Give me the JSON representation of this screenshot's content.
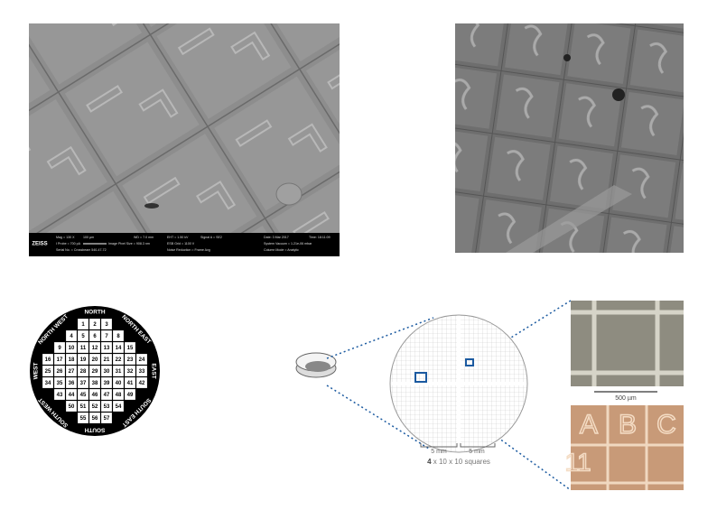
{
  "sem_image": {
    "brand": "ZEISS",
    "info": [
      "Mag = 130 X",
      "100 µm",
      "WD = 7.0 mm",
      "EHT = 1.50 kV",
      "Signal A = SE2",
      "Date: 3 Mar 2017",
      "Time: 18:11:09",
      "I Probe = 700 pA",
      "Image Pixel Size = 908.3 nm",
      "ESB Grid = 1100 V",
      "System Vacuum = 1.21e-06 mbar",
      "Serial No. = Crossbeam 540-47-72",
      "Noise Reduction = Frame Avg",
      "Column Mode = Analytic"
    ]
  },
  "wafer": {
    "directions": [
      "NORTH",
      "NORTH EAST",
      "EAST",
      "SOUTH EAST",
      "SOUTH",
      "SOUTH WEST",
      "WEST",
      "NORTH WEST"
    ],
    "rows": [
      [
        "1",
        "2",
        "3"
      ],
      [
        "4",
        "5",
        "6",
        "7",
        "8"
      ],
      [
        "9",
        "10",
        "11",
        "12",
        "13",
        "14",
        "15"
      ],
      [
        "16",
        "17",
        "18",
        "19",
        "20",
        "21",
        "22",
        "23",
        "24"
      ],
      [
        "25",
        "26",
        "27",
        "28",
        "29",
        "30",
        "31",
        "32",
        "33"
      ],
      [
        "34",
        "35",
        "36",
        "37",
        "38",
        "39",
        "40",
        "41",
        "42"
      ],
      [
        "43",
        "44",
        "45",
        "46",
        "47",
        "48",
        "49"
      ],
      [
        "50",
        "51",
        "52",
        "53",
        "54"
      ],
      [
        "55",
        "56",
        "57"
      ]
    ]
  },
  "diagram": {
    "scale_left": "5 mm",
    "scale_right": "5 mm",
    "count": "4",
    "caption": " x 10 x 10 squares",
    "micro_scale": "500 µm",
    "letters": [
      "A",
      "B",
      "C"
    ],
    "number": "11"
  }
}
